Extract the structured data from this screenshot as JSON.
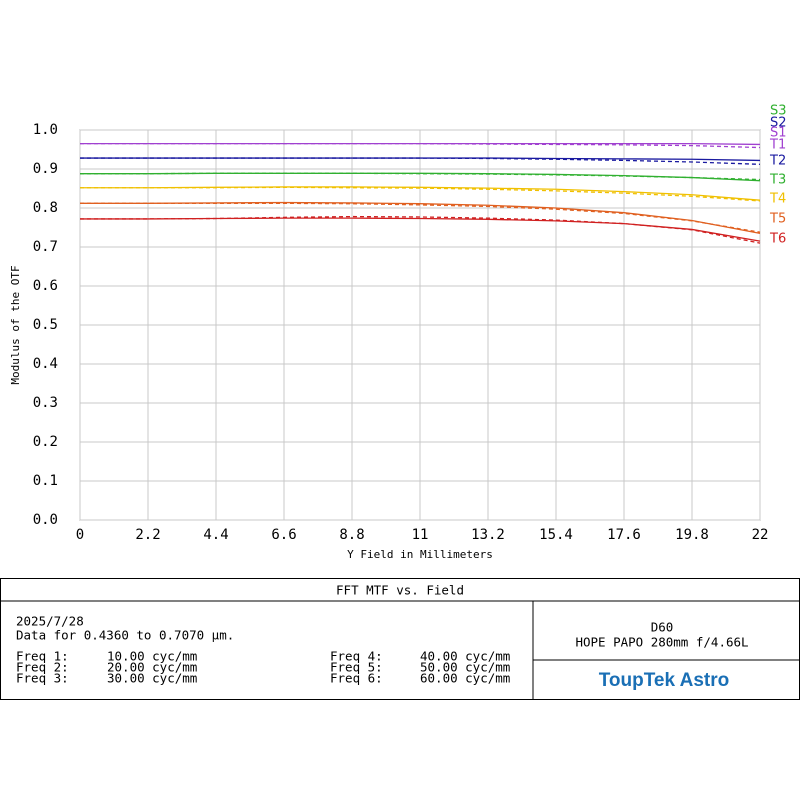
{
  "chart_data": {
    "type": "line",
    "title": "FFT MTF vs. Field",
    "x_label": "Y Field in Millimeters",
    "y_label": "Modulus of the OTF",
    "x": [
      0,
      2.2,
      4.4,
      6.6,
      8.8,
      11,
      13.2,
      15.4,
      17.6,
      19.8,
      22
    ],
    "xlim": [
      0,
      22
    ],
    "xticks": [
      0,
      2.2,
      4.4,
      6.6,
      8.8,
      11,
      13.2,
      15.4,
      17.6,
      19.8,
      22
    ],
    "ylim": [
      0,
      1
    ],
    "yticks": [
      {
        "value": 0,
        "label": "0.0"
      },
      0.1,
      0.2,
      0.3,
      0.4,
      0.5,
      0.6,
      0.7,
      0.8,
      0.9,
      {
        "value": 1,
        "label": "1.0"
      }
    ],
    "grid": true,
    "series": [
      {
        "name": "T1",
        "color": "#a040d0",
        "style": "solid",
        "values": [
          0.965,
          0.965,
          0.965,
          0.965,
          0.965,
          0.965,
          0.965,
          0.965,
          0.965,
          0.965,
          0.963
        ]
      },
      {
        "name": "S1",
        "color": "#a040d0",
        "style": "dashed",
        "values": [
          0.965,
          0.965,
          0.965,
          0.965,
          0.965,
          0.965,
          0.964,
          0.963,
          0.962,
          0.96,
          0.955
        ]
      },
      {
        "name": "T2",
        "color": "#1a1aa0",
        "style": "solid",
        "values": [
          0.928,
          0.928,
          0.928,
          0.928,
          0.928,
          0.928,
          0.928,
          0.927,
          0.926,
          0.925,
          0.922
        ]
      },
      {
        "name": "S2",
        "color": "#1a1aa0",
        "style": "dashed",
        "values": [
          0.928,
          0.928,
          0.928,
          0.928,
          0.928,
          0.928,
          0.927,
          0.925,
          0.922,
          0.918,
          0.912
        ]
      },
      {
        "name": "T3",
        "color": "#30b030",
        "style": "solid",
        "values": [
          0.888,
          0.888,
          0.889,
          0.889,
          0.889,
          0.889,
          0.888,
          0.886,
          0.883,
          0.878,
          0.87
        ]
      },
      {
        "name": "S3",
        "color": "#30b030",
        "style": "dashed",
        "values": [
          0.888,
          0.888,
          0.889,
          0.889,
          0.889,
          0.888,
          0.887,
          0.885,
          0.882,
          0.878,
          0.873
        ]
      },
      {
        "name": "T4",
        "color": "#f0c000",
        "style": "solid",
        "values": [
          0.852,
          0.852,
          0.853,
          0.854,
          0.854,
          0.853,
          0.851,
          0.848,
          0.842,
          0.834,
          0.82
        ]
      },
      {
        "color": "#f0c000",
        "style": "dashed",
        "values": [
          0.852,
          0.852,
          0.852,
          0.853,
          0.852,
          0.851,
          0.848,
          0.844,
          0.838,
          0.83,
          0.818
        ]
      },
      {
        "name": "T5",
        "color": "#e06020",
        "style": "solid",
        "values": [
          0.812,
          0.812,
          0.813,
          0.814,
          0.813,
          0.811,
          0.807,
          0.8,
          0.788,
          0.768,
          0.735
        ]
      },
      {
        "color": "#e06020",
        "style": "dashed",
        "values": [
          0.812,
          0.812,
          0.812,
          0.812,
          0.811,
          0.808,
          0.804,
          0.797,
          0.786,
          0.767,
          0.738
        ]
      },
      {
        "name": "T6",
        "color": "#d02020",
        "style": "solid",
        "values": [
          0.772,
          0.772,
          0.773,
          0.774,
          0.774,
          0.773,
          0.771,
          0.767,
          0.76,
          0.745,
          0.715
        ]
      },
      {
        "color": "#d02020",
        "style": "dashed",
        "values": [
          0.772,
          0.772,
          0.773,
          0.776,
          0.778,
          0.777,
          0.774,
          0.769,
          0.76,
          0.744,
          0.71
        ]
      }
    ]
  },
  "info": {
    "date": "2025/7/28",
    "data_range": "Data for 0.4360 to 0.7070 µm.",
    "frequencies": [
      {
        "label": "Freq 1:",
        "value": "10.00 cyc/mm",
        "color": "#a040d0"
      },
      {
        "label": "Freq 2:",
        "value": "20.00 cyc/mm",
        "color": "#1a1aa0"
      },
      {
        "label": "Freq 3:",
        "value": "30.00 cyc/mm",
        "color": "#30b030"
      },
      {
        "label": "Freq 4:",
        "value": "40.00 cyc/mm",
        "color": "#f0c000"
      },
      {
        "label": "Freq 5:",
        "value": "50.00 cyc/mm",
        "color": "#e06020"
      },
      {
        "label": "Freq 6:",
        "value": "60.00 cyc/mm",
        "color": "#d02020"
      }
    ],
    "lens_name": "D60",
    "lens_detail": "HOPE PAPO 280mm f/4.66L",
    "logo": "ToupTek Astro"
  }
}
